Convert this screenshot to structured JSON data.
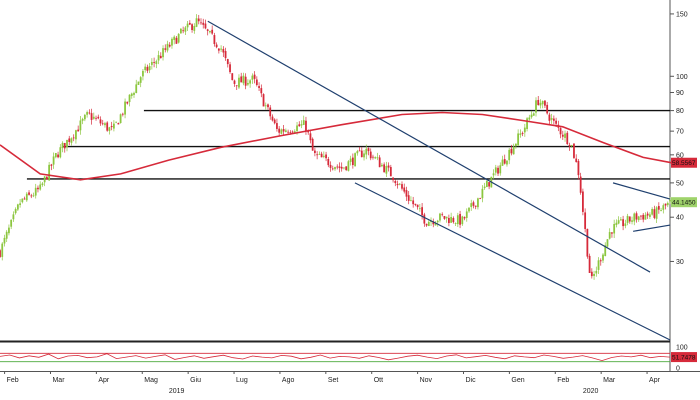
{
  "chart_data": {
    "type": "candlestick",
    "title": "",
    "xlabel": "",
    "ylabel": "",
    "y_scale": "log",
    "ylim": [
      18,
      160
    ],
    "y_ticks": [
      150,
      100,
      90,
      80,
      70,
      60,
      50,
      40,
      30
    ],
    "x_months": [
      "Feb",
      "Mar",
      "Apr",
      "Mag",
      "Giu",
      "Lug",
      "Ago",
      "Set",
      "Ott",
      "Nov",
      "Dic",
      "Gen",
      "Feb",
      "Mar",
      "Apr"
    ],
    "x_years": [
      "2019",
      "2020"
    ],
    "price_path": [
      [
        0,
        32
      ],
      [
        0.05,
        44
      ],
      [
        0.1,
        48
      ],
      [
        0.14,
        60
      ],
      [
        0.22,
        78
      ],
      [
        0.28,
        70
      ],
      [
        0.35,
        100
      ],
      [
        0.45,
        132
      ],
      [
        0.49,
        143
      ],
      [
        0.55,
        120
      ],
      [
        0.58,
        96
      ],
      [
        0.63,
        98
      ],
      [
        0.69,
        70
      ],
      [
        0.76,
        73
      ],
      [
        0.78,
        60
      ],
      [
        0.85,
        55
      ],
      [
        0.91,
        62
      ],
      [
        0.98,
        52
      ],
      [
        1.0,
        48
      ],
      [
        1.06,
        39
      ],
      [
        1.1,
        40
      ],
      [
        1.15,
        39
      ],
      [
        1.24,
        55
      ],
      [
        1.3,
        70
      ],
      [
        1.34,
        86
      ],
      [
        1.38,
        73
      ],
      [
        1.42,
        65
      ],
      [
        1.44,
        53
      ],
      [
        1.47,
        26
      ],
      [
        1.52,
        37
      ],
      [
        1.58,
        40
      ],
      [
        1.63,
        41
      ],
      [
        1.67,
        44.1
      ]
    ],
    "moving_average": {
      "color": "#d62a3a",
      "points": [
        [
          0,
          64
        ],
        [
          0.1,
          53
        ],
        [
          0.2,
          51
        ],
        [
          0.3,
          53
        ],
        [
          0.42,
          58
        ],
        [
          0.55,
          63
        ],
        [
          0.7,
          68
        ],
        [
          0.85,
          73
        ],
        [
          1.0,
          78
        ],
        [
          1.1,
          79
        ],
        [
          1.2,
          78
        ],
        [
          1.3,
          75
        ],
        [
          1.4,
          72
        ],
        [
          1.5,
          65
        ],
        [
          1.6,
          59
        ],
        [
          1.67,
          57
        ]
      ],
      "last_value": "58.5567"
    },
    "horizontal_levels": [
      {
        "y": 80.0,
        "from": 0.358
      },
      {
        "y": 63.3,
        "from": 0.158
      },
      {
        "y": 51.3,
        "from": 0.067
      }
    ],
    "trendlines": [
      {
        "from": [
          0.517,
          143
        ],
        "to": [
          1.617,
          28
        ]
      },
      {
        "from": [
          0.883,
          50
        ],
        "to": [
          1.667,
          18
        ]
      },
      {
        "from": [
          1.525,
          50
        ],
        "to": [
          1.667,
          45
        ]
      },
      {
        "from": [
          1.575,
          36.5
        ],
        "to": [
          1.667,
          38
        ]
      }
    ],
    "last_price": "44.1450",
    "last_price_color": "#9fd36b",
    "oscillator": {
      "color": "#d62a3a",
      "last_value": "51.7478",
      "y_ticks": [
        "100",
        "0"
      ],
      "levels": [
        {
          "value": 70,
          "color": "#d62a3a"
        },
        {
          "value": 30,
          "color": "#4aa93a"
        }
      ],
      "values": [
        55,
        62,
        48,
        58,
        51,
        66,
        44,
        57,
        60,
        49,
        53,
        68,
        45,
        52,
        59,
        47,
        55,
        63,
        41,
        50,
        58,
        46,
        54,
        61,
        49,
        43,
        57,
        52,
        48,
        60,
        56,
        44,
        51,
        62,
        47,
        55,
        53,
        46,
        58,
        50,
        39,
        47,
        56,
        61,
        52,
        45,
        57,
        63,
        48,
        54,
        60,
        51,
        44,
        58,
        53,
        49,
        62,
        55,
        46,
        52,
        59,
        48,
        35,
        50,
        57,
        53,
        61,
        49,
        55,
        51.7
      ]
    },
    "candle_up_color": "#8cc63f",
    "candle_down_color": "#d62a3a",
    "grid": false,
    "legend": "none"
  }
}
